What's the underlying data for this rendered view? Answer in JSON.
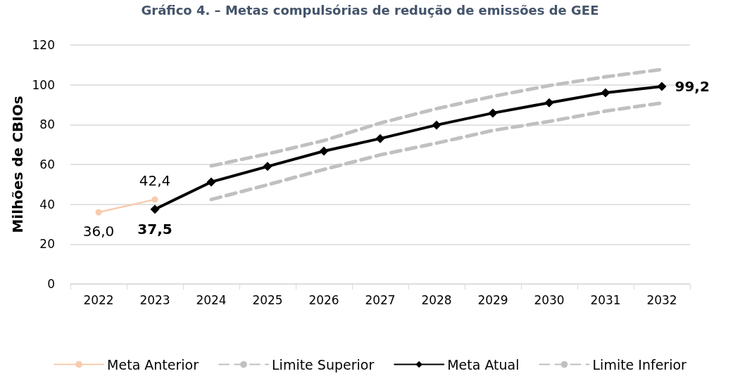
{
  "chart_data": {
    "type": "line",
    "title": "Gráfico 4. – Metas compulsórias de redução de emissões de GEE",
    "ylabel": "Milhões de CBIOs",
    "categories": [
      "2022",
      "2023",
      "2024",
      "2025",
      "2026",
      "2027",
      "2028",
      "2029",
      "2030",
      "2031",
      "2032"
    ],
    "series": [
      {
        "name": "Meta Anterior",
        "color": "#f8cbad",
        "marker": "circle",
        "line_style": "solid",
        "values": [
          36.0,
          42.4,
          null,
          null,
          null,
          null,
          null,
          null,
          null,
          null,
          null
        ],
        "value_labels": [
          "36,0",
          "42,4",
          null,
          null,
          null,
          null,
          null,
          null,
          null,
          null,
          null
        ]
      },
      {
        "name": "Limite Superior",
        "color": "#c0c0c0",
        "marker": "none",
        "line_style": "dashed",
        "values": [
          null,
          null,
          59.3,
          65.3,
          72.0,
          80.8,
          88.0,
          94.2,
          99.6,
          104.0,
          107.7
        ]
      },
      {
        "name": "Meta Atual",
        "color": "#000000",
        "marker": "diamond",
        "line_style": "solid",
        "values": [
          null,
          37.5,
          51.2,
          59.0,
          66.7,
          73.0,
          79.8,
          85.8,
          91.0,
          96.0,
          99.2
        ],
        "value_labels": [
          null,
          "37,5",
          null,
          null,
          null,
          null,
          null,
          null,
          null,
          null,
          "99,2"
        ]
      },
      {
        "name": "Limite Inferior",
        "color": "#c0c0c0",
        "marker": "none",
        "line_style": "dashed",
        "values": [
          null,
          null,
          42.4,
          49.8,
          57.5,
          64.8,
          70.7,
          77.1,
          81.6,
          86.8,
          90.9
        ]
      }
    ],
    "ylim": [
      0,
      120
    ],
    "yticks": [
      0,
      20,
      40,
      60,
      80,
      100,
      120
    ],
    "grid": "y",
    "legend": "bottom"
  }
}
